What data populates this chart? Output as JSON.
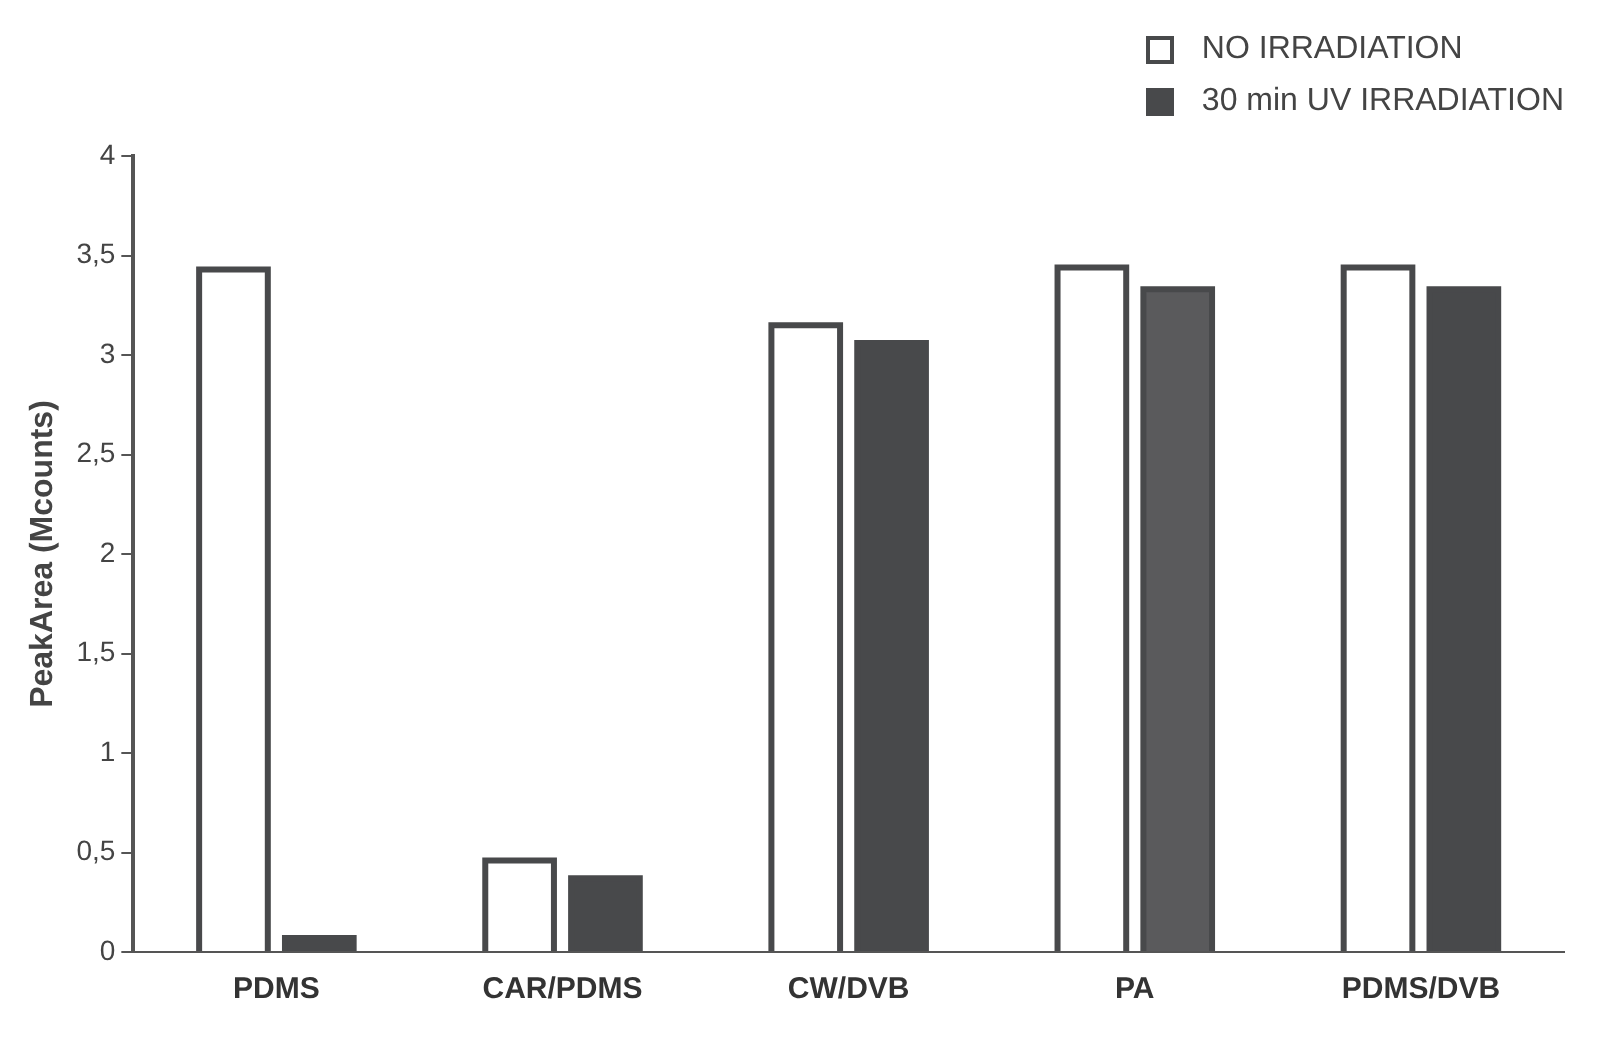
{
  "chart_data": {
    "type": "bar",
    "ylabel": "PeakArea (Mcounts)",
    "categories": [
      "PDMS",
      "CAR/PDMS",
      "CW/DVB",
      "PA",
      "PDMS/DVB"
    ],
    "series": [
      {
        "name": "NO IRRADIATION",
        "color": "#ffffff",
        "values": [
          3.43,
          0.46,
          3.15,
          3.44,
          3.44
        ]
      },
      {
        "name": "30 min UV IRRADIATION",
        "color": "#48494b",
        "colors": [
          "#48494b",
          "#48494b",
          "#48494b",
          "#5a5a5c",
          "#48494b"
        ],
        "values": [
          0.07,
          0.37,
          3.06,
          3.33,
          3.33
        ]
      }
    ],
    "ylim": [
      0,
      4
    ],
    "yticks": [
      {
        "value": 0,
        "label": "0"
      },
      {
        "value": 0.5,
        "label": "0,5"
      },
      {
        "value": 1,
        "label": "1"
      },
      {
        "value": 1.5,
        "label": "1,5"
      },
      {
        "value": 2,
        "label": "2"
      },
      {
        "value": 2.5,
        "label": "2,5"
      },
      {
        "value": 3,
        "label": "3"
      },
      {
        "value": 3.5,
        "label": "3,5"
      },
      {
        "value": 4,
        "label": "4"
      }
    ],
    "grid": false,
    "legend": "top right"
  }
}
